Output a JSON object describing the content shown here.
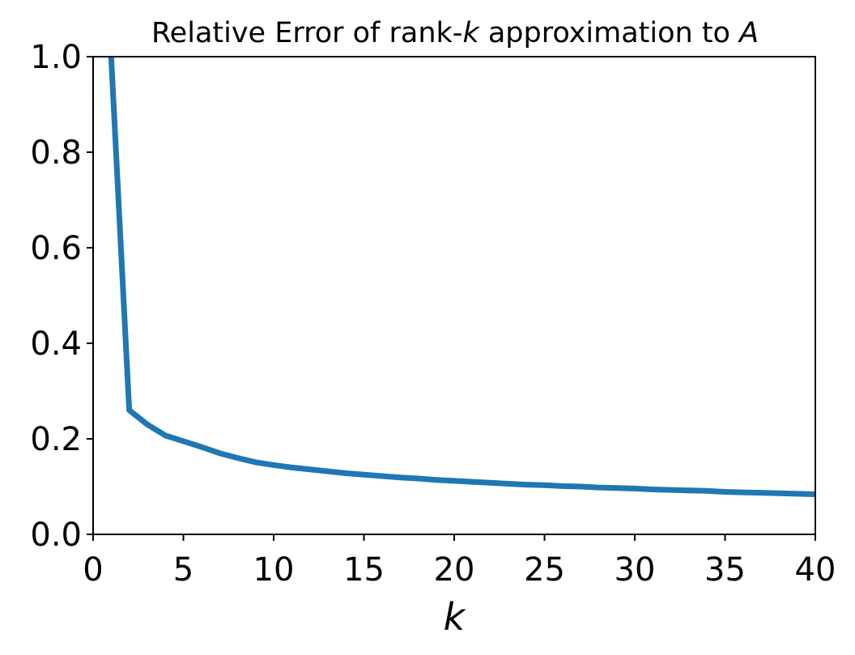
{
  "chart_data": {
    "type": "line",
    "title": "Relative Error of rank-",
    "title_var": "k",
    "title_mid": " approximation to ",
    "title_end": "A",
    "xlabel": "k",
    "ylabel": "",
    "xlim": [
      0,
      40
    ],
    "ylim": [
      0,
      1
    ],
    "xticks": [
      0,
      5,
      10,
      15,
      20,
      25,
      30,
      35,
      40
    ],
    "xtick_labels": [
      "0",
      "5",
      "10",
      "15",
      "20",
      "25",
      "30",
      "35",
      "40"
    ],
    "yticks": [
      0,
      0.2,
      0.4,
      0.6,
      0.8,
      1.0
    ],
    "ytick_labels": [
      "0.0",
      "0.2",
      "0.4",
      "0.6",
      "0.8",
      "1.0"
    ],
    "grid": false,
    "series": [
      {
        "color": "#1f77b4",
        "x": [
          1,
          2,
          3,
          4,
          5,
          6,
          7,
          8,
          9,
          10,
          11,
          12,
          13,
          14,
          15,
          16,
          17,
          18,
          19,
          20,
          21,
          22,
          23,
          24,
          25,
          26,
          27,
          28,
          29,
          30,
          31,
          32,
          33,
          34,
          35,
          36,
          37,
          38,
          39,
          40
        ],
        "y": [
          1.0,
          0.26,
          0.23,
          0.207,
          0.195,
          0.183,
          0.17,
          0.16,
          0.151,
          0.145,
          0.14,
          0.136,
          0.132,
          0.128,
          0.125,
          0.122,
          0.119,
          0.117,
          0.114,
          0.112,
          0.11,
          0.108,
          0.106,
          0.104,
          0.103,
          0.101,
          0.1,
          0.098,
          0.097,
          0.096,
          0.094,
          0.093,
          0.092,
          0.091,
          0.089,
          0.088,
          0.087,
          0.086,
          0.085,
          0.084
        ]
      }
    ]
  }
}
